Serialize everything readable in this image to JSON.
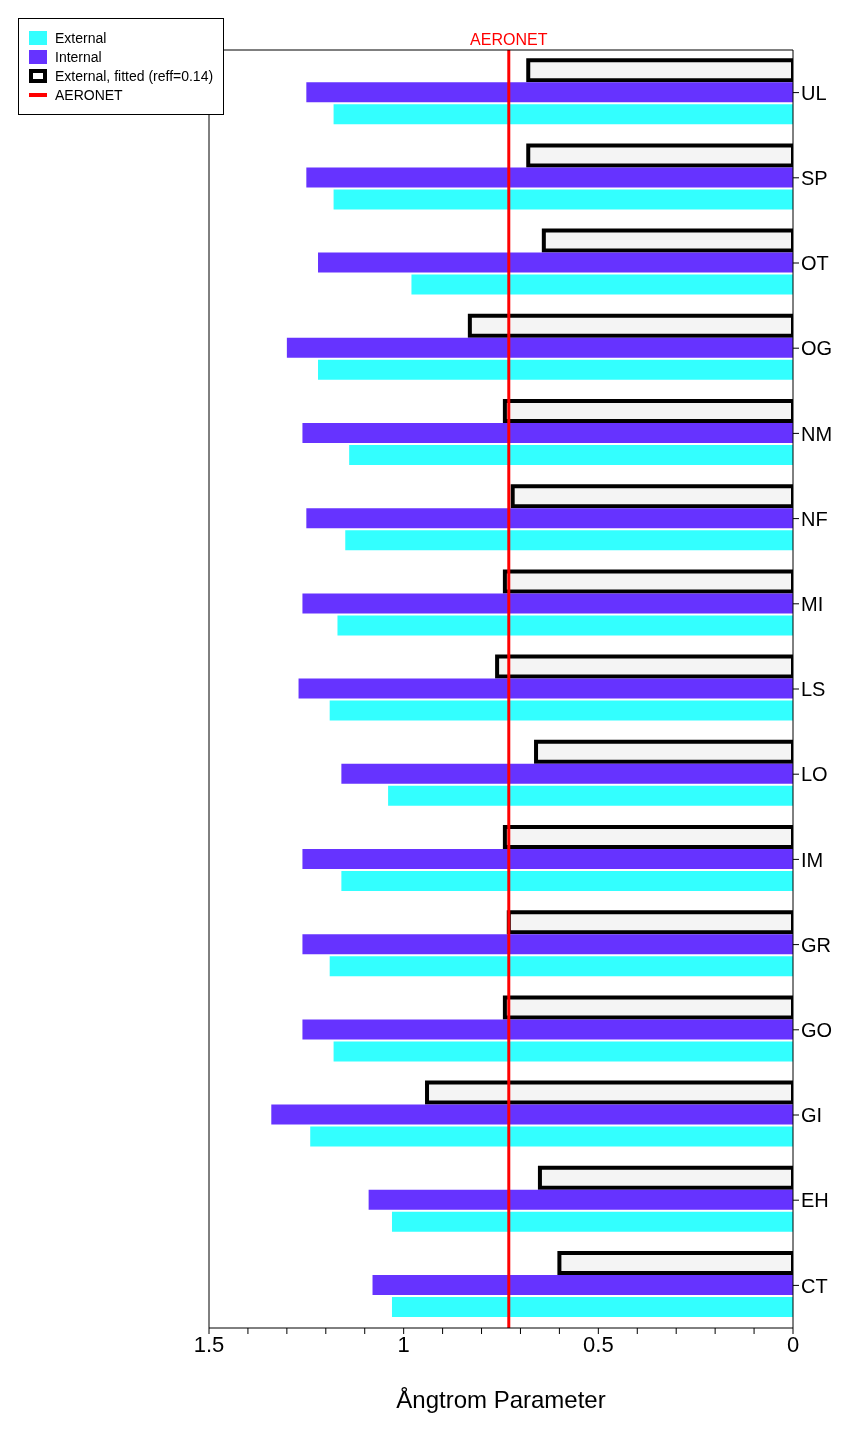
{
  "chart_data": {
    "type": "bar",
    "orientation": "horizontal",
    "xlabel": "Ångtrom Parameter",
    "categories": [
      "UL",
      "SP",
      "OT",
      "OG",
      "NM",
      "NF",
      "MI",
      "LS",
      "LO",
      "IM",
      "GR",
      "GO",
      "GI",
      "EH",
      "CT"
    ],
    "series": [
      {
        "name": "External",
        "color": "#33ffff",
        "values": [
          1.18,
          1.18,
          0.98,
          1.22,
          1.14,
          1.15,
          1.17,
          1.19,
          1.04,
          1.16,
          1.19,
          1.18,
          1.24,
          1.03,
          1.03
        ]
      },
      {
        "name": "Internal",
        "color": "#6633ff",
        "values": [
          1.25,
          1.25,
          1.22,
          1.3,
          1.26,
          1.25,
          1.26,
          1.27,
          1.16,
          1.26,
          1.26,
          1.26,
          1.34,
          1.09,
          1.08
        ]
      },
      {
        "name": "External, fitted (reff=0.14)",
        "color": "#000000",
        "values": [
          0.68,
          0.68,
          0.64,
          0.83,
          0.74,
          0.72,
          0.74,
          0.76,
          0.66,
          0.74,
          0.73,
          0.74,
          0.94,
          0.65,
          0.6
        ]
      }
    ],
    "xlim": [
      1.5,
      0
    ],
    "xticks": [
      1.5,
      {
        "value": 1.4,
        "label": null
      },
      {
        "value": 1.3,
        "label": null
      },
      {
        "value": 1.2,
        "label": null
      },
      {
        "value": 1.1,
        "label": null
      },
      1,
      {
        "value": 0.9,
        "label": null
      },
      {
        "value": 0.8,
        "label": null
      },
      {
        "value": 0.7,
        "label": null
      },
      {
        "value": 0.6,
        "label": null
      },
      0.5,
      {
        "value": 0.4,
        "label": null
      },
      {
        "value": 0.3,
        "label": null
      },
      {
        "value": 0.2,
        "label": null
      },
      {
        "value": 0.1,
        "label": null
      },
      0
    ],
    "ref_lines": [
      {
        "axis": "x",
        "value": 0.73,
        "label": "AERONET",
        "color": "#ff0000"
      }
    ],
    "legend": "top left"
  }
}
